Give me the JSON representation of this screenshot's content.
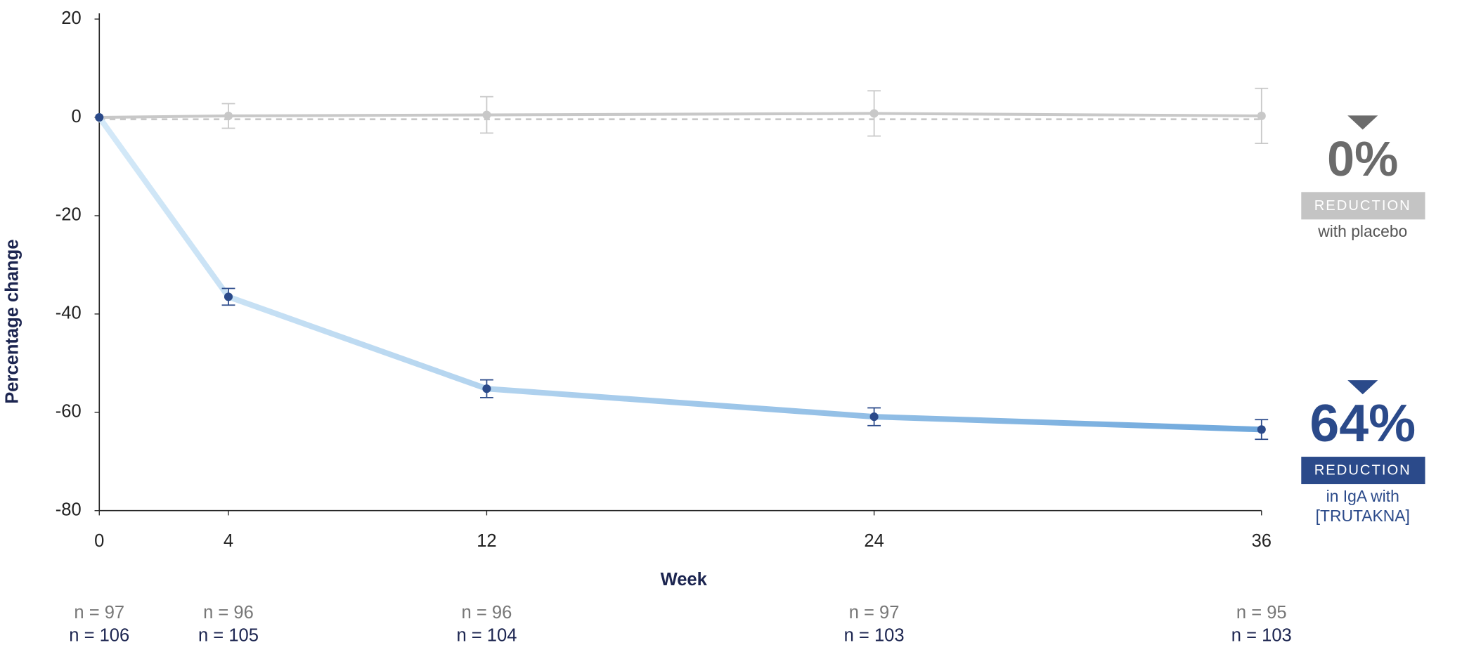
{
  "chart_data": {
    "type": "line",
    "y_label": "Percentage change",
    "x_label": "Week",
    "x": [
      0,
      4,
      12,
      24,
      36
    ],
    "xlim": [
      0,
      36
    ],
    "xticks": [
      0,
      4,
      12,
      24,
      36
    ],
    "ylim": [
      -80,
      20
    ],
    "yticks": [
      20,
      0,
      -20,
      -40,
      -60,
      -80
    ],
    "grid": false,
    "reference_line": 0,
    "series": [
      {
        "color": "#c8c8c8",
        "marker_color": "#c8c8c8",
        "values": [
          0,
          0.3,
          0.5,
          0.8,
          0.3
        ],
        "errors": [
          0,
          2.5,
          3.7,
          4.6,
          5.6
        ]
      },
      {
        "color": "#6fa8dc",
        "color_start": "#d4e9f8",
        "marker_color": "#2b4a8a",
        "values": [
          0,
          -36.5,
          -55.2,
          -60.9,
          -63.5
        ],
        "errors": [
          0,
          1.7,
          1.8,
          1.8,
          2
        ]
      }
    ],
    "n_counts": [
      [
        "n = 97",
        "n = 96",
        "n = 96",
        "n = 97",
        "n = 95"
      ],
      [
        "n = 106",
        "n = 105",
        "n = 104",
        "n = 103",
        "n = 103"
      ]
    ],
    "callouts": [
      {
        "value_text": "0%",
        "label": "REDUCTION",
        "caption": [
          "with placebo"
        ],
        "color": "#6b6b6b",
        "box_color": "#c4c4c4"
      },
      {
        "value_text": "64%",
        "label": "REDUCTION",
        "caption": [
          "in IgA with",
          "[TRUTAKNA]"
        ],
        "color": "#2b4a8a",
        "box_color": "#2b4a8a"
      }
    ]
  }
}
